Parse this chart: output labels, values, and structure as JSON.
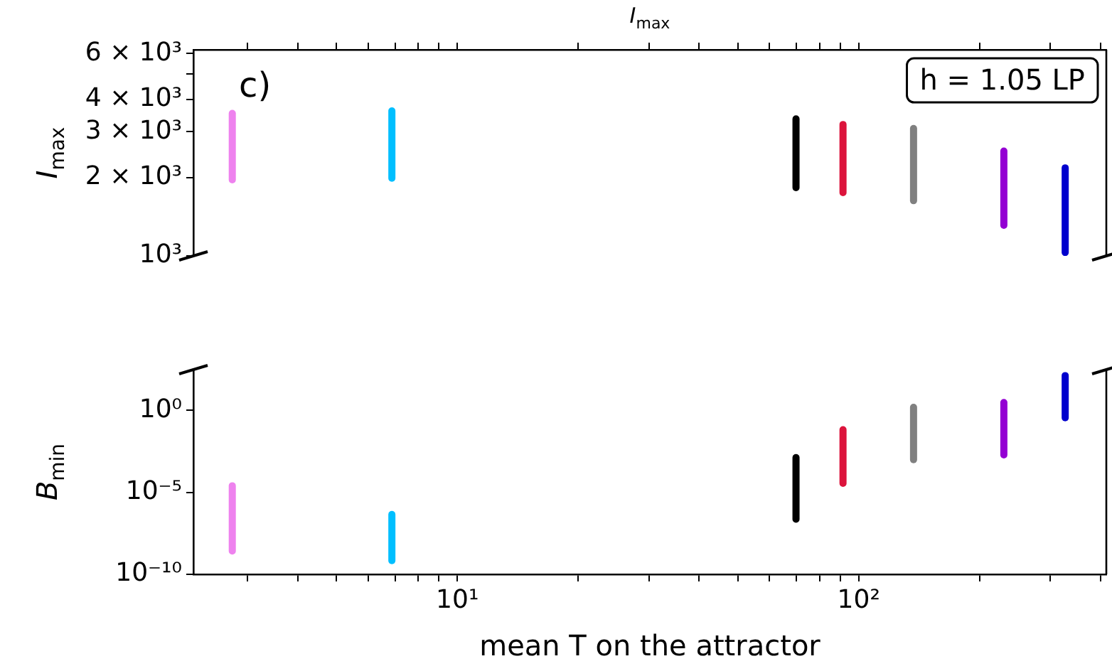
{
  "chart_data": [
    {
      "type": "line",
      "title": "I$_{max}$",
      "ylabel": "I$_{max}$",
      "log": "xy",
      "tick_labels": "y",
      "xlim": [
        2.2,
        414
      ],
      "xticks": [
        {
          "value": 3,
          "label": null
        },
        {
          "value": 4,
          "label": null
        },
        {
          "value": 5,
          "label": null
        },
        {
          "value": 6,
          "label": null
        },
        {
          "value": 7,
          "label": null
        },
        {
          "value": 8,
          "label": null
        },
        {
          "value": 9,
          "label": null
        },
        {
          "value": 10,
          "label": null
        },
        {
          "value": 20,
          "label": null
        },
        {
          "value": 30,
          "label": null
        },
        {
          "value": 40,
          "label": null
        },
        {
          "value": 50,
          "label": null
        },
        {
          "value": 60,
          "label": null
        },
        {
          "value": 70,
          "label": null
        },
        {
          "value": 80,
          "label": null
        },
        {
          "value": 90,
          "label": null
        },
        {
          "value": 100,
          "label": null
        },
        {
          "value": 200,
          "label": null
        },
        {
          "value": 300,
          "label": null
        },
        {
          "value": 400,
          "label": null
        }
      ],
      "ylim": [
        1000,
        6200
      ],
      "yticks": [
        {
          "value": 1000,
          "label": "10³"
        },
        {
          "value": 2000,
          "label": "2 × 10³"
        },
        {
          "value": 3000,
          "label": "3 × 10³"
        },
        {
          "value": 4000,
          "label": "4 × 10³"
        },
        {
          "value": 5000,
          "label": null
        },
        {
          "value": 6000,
          "label": "6 × 10³"
        }
      ],
      "annotations": [
        "c)",
        "h = 1.05 LP"
      ],
      "series": [
        {
          "color": "#ee82ee",
          "x": [
            2.75,
            2.75
          ],
          "values": [
            1960,
            3530
          ]
        },
        {
          "color": "#00bfff",
          "x": [
            6.87,
            6.87
          ],
          "values": [
            1990,
            3610
          ]
        },
        {
          "color": "#000000",
          "x": [
            69.8,
            69.8
          ],
          "values": [
            1830,
            3360
          ]
        },
        {
          "color": "#dc143c",
          "x": [
            91.4,
            91.4
          ],
          "values": [
            1750,
            3200
          ]
        },
        {
          "color": "#808080",
          "x": [
            137,
            137
          ],
          "values": [
            1630,
            3090
          ]
        },
        {
          "color": "#9400d3",
          "x": [
            230,
            230
          ],
          "values": [
            1310,
            2530
          ]
        },
        {
          "color": "#0000cd",
          "x": [
            327,
            327
          ],
          "values": [
            1030,
            2180
          ]
        }
      ]
    },
    {
      "type": "line",
      "ylabel": "B$_{min}$",
      "xlabel": "mean T on the attractor",
      "log": "xy",
      "xlim": [
        2.2,
        414
      ],
      "xticks": [
        {
          "value": 3,
          "label": null
        },
        {
          "value": 4,
          "label": null
        },
        {
          "value": 5,
          "label": null
        },
        {
          "value": 6,
          "label": null
        },
        {
          "value": 7,
          "label": null
        },
        {
          "value": 8,
          "label": null
        },
        {
          "value": 9,
          "label": null
        },
        {
          "value": 10,
          "label": "10¹"
        },
        {
          "value": 20,
          "label": null
        },
        {
          "value": 30,
          "label": null
        },
        {
          "value": 40,
          "label": null
        },
        {
          "value": 50,
          "label": null
        },
        {
          "value": 60,
          "label": null
        },
        {
          "value": 70,
          "label": null
        },
        {
          "value": 80,
          "label": null
        },
        {
          "value": 90,
          "label": null
        },
        {
          "value": 100,
          "label": "10²"
        },
        {
          "value": 200,
          "label": null
        },
        {
          "value": 300,
          "label": null
        },
        {
          "value": 400,
          "label": null
        }
      ],
      "ylim": [
        1e-10,
        300
      ],
      "yticks": [
        {
          "value": 1e-10,
          "label": "10⁻¹⁰"
        },
        {
          "value": 1e-05,
          "label": "10⁻⁵"
        },
        {
          "value": 1,
          "label": "10⁰"
        }
      ],
      "series": [
        {
          "color": "#ee82ee",
          "x": [
            2.75,
            2.75
          ],
          "values": [
            2.6e-09,
            2.5e-05
          ]
        },
        {
          "color": "#00bfff",
          "x": [
            6.87,
            6.87
          ],
          "values": [
            6.8e-10,
            4.5e-07
          ]
        },
        {
          "color": "#000000",
          "x": [
            69.8,
            69.8
          ],
          "values": [
            2.3e-07,
            0.0013
          ]
        },
        {
          "color": "#dc143c",
          "x": [
            91.4,
            91.4
          ],
          "values": [
            3.5e-05,
            0.066
          ]
        },
        {
          "color": "#808080",
          "x": [
            137,
            137
          ],
          "values": [
            0.00098,
            1.5
          ]
        },
        {
          "color": "#9400d3",
          "x": [
            230,
            230
          ],
          "values": [
            0.0019,
            3.0
          ]
        },
        {
          "color": "#0000cd",
          "x": [
            327,
            327
          ],
          "values": [
            0.35,
            130
          ]
        }
      ]
    }
  ]
}
